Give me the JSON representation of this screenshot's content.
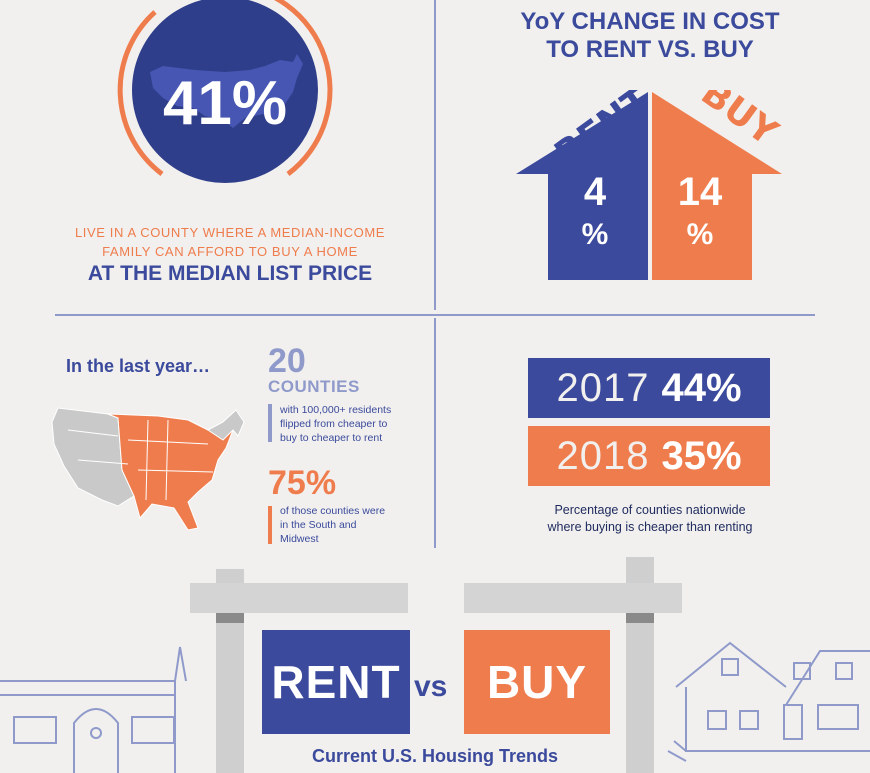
{
  "afford": {
    "percent": "41%",
    "ring_fraction": 0.41,
    "line1": "LIVE IN A COUNTY WHERE A MEDIAN-INCOME",
    "line2": "FAMILY CAN AFFORD TO BUY A HOME",
    "line3": "AT THE MEDIAN LIST PRICE"
  },
  "yoy": {
    "title": "YoY CHANGE IN COST\nTO RENT VS. BUY",
    "rent_label": "RENT",
    "rent_value": "4",
    "rent_unit": "%",
    "buy_label": "BUY",
    "buy_value": "14",
    "buy_unit": "%"
  },
  "last_year": {
    "heading": "In the last year…",
    "stat1_value": "20",
    "stat1_unit": "COUNTIES",
    "stat1_line1": "with 100,000+ residents",
    "stat1_line2": "flipped from cheaper to",
    "stat1_line3": "buy to cheaper to rent",
    "stat2_value": "75%",
    "stat2_line1": "of those counties were",
    "stat2_line2": "in the South and",
    "stat2_line3": "Midwest"
  },
  "cheaper_to_buy": {
    "rows": [
      {
        "year": "2017",
        "percent": "44%"
      },
      {
        "year": "2018",
        "percent": "35%"
      }
    ],
    "caption_line1": "Percentage of counties nationwide",
    "caption_line2": "where buying is cheaper than renting"
  },
  "signs": {
    "rent": "RENT",
    "vs": "vs",
    "buy": "BUY",
    "caption": "Current U.S. Housing Trends"
  },
  "colors": {
    "navy": "#3b4a9c",
    "orange": "#ef7c4c",
    "background": "#f1f0ee",
    "divider": "#8f9acb"
  }
}
